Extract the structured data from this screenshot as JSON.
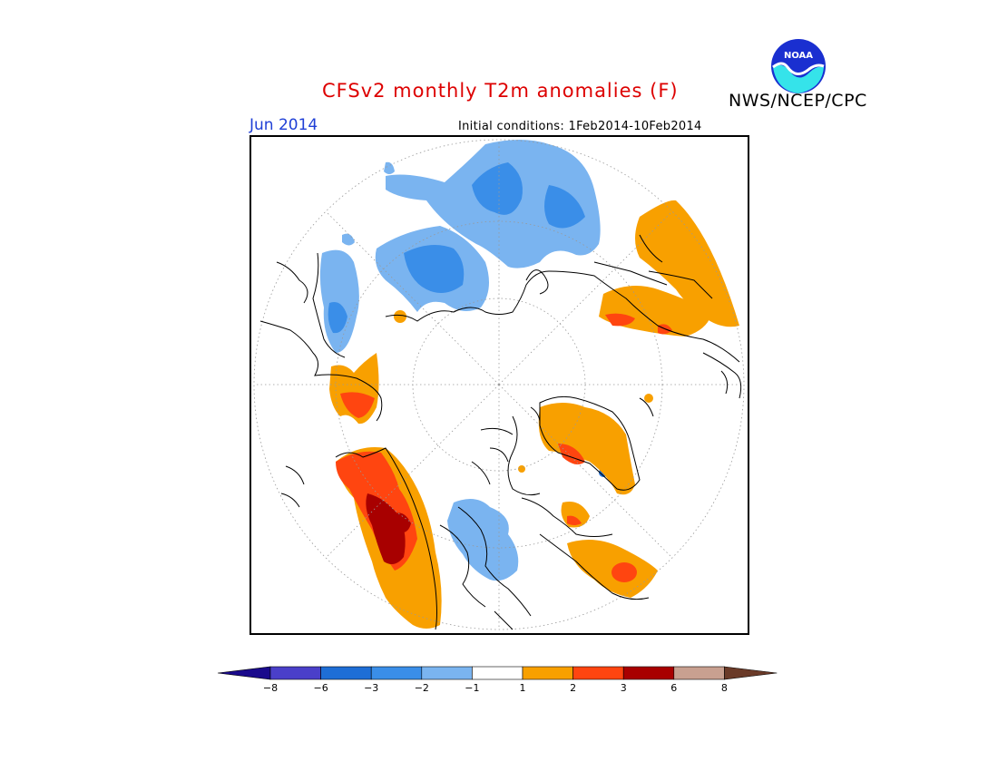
{
  "header": {
    "title": "CFSv2 monthly T2m anomalies (F)",
    "agency": "NWS/NCEP/CPC",
    "logo_text": "NOAA",
    "valid_month": "Jun 2014",
    "initial_conditions": "Initial conditions: 1Feb2014-10Feb2014"
  },
  "legend": {
    "tick_labels": [
      "-8",
      "-6",
      "-3",
      "-2",
      "-1",
      "1",
      "2",
      "3",
      "6",
      "8"
    ],
    "bins": [
      {
        "range": "below -8",
        "color": "#1a0a8c"
      },
      {
        "range": "-8 to -6",
        "color": "#4a3fc9"
      },
      {
        "range": "-6 to -3",
        "color": "#1e6ed6"
      },
      {
        "range": "-3 to -2",
        "color": "#3a8ee8"
      },
      {
        "range": "-2 to -1",
        "color": "#7ab4f0"
      },
      {
        "range": "-1 to 1",
        "color": "#ffffff"
      },
      {
        "range": "1 to 2",
        "color": "#f8a000"
      },
      {
        "range": "2 to 3",
        "color": "#ff4510"
      },
      {
        "range": "3 to 6",
        "color": "#a80000"
      },
      {
        "range": "6 to 8",
        "color": "#c8a090"
      },
      {
        "range": "above 8",
        "color": "#6a3a28"
      }
    ]
  },
  "map": {
    "projection": "north polar stereographic",
    "variable": "2m temperature anomaly",
    "units": "F"
  }
}
